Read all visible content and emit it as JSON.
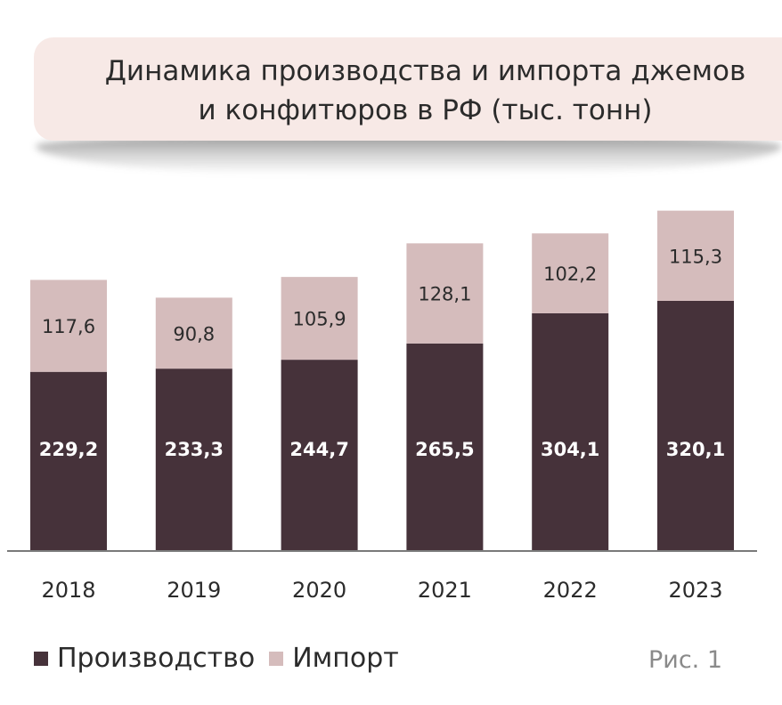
{
  "title_lines": [
    "Динамика производства и импорта джемов",
    "и конфитюров в РФ (тыс. тонн)"
  ],
  "figure_label": "Рис. 1",
  "colors": {
    "production": "#46323a",
    "import": "#d5bcbc",
    "title_bg": "#f7e9e6",
    "axis": "#7a7a7a"
  },
  "chart_data": {
    "type": "bar",
    "stacked": true,
    "title": "Динамика производства и импорта джемов и конфитюров в РФ (тыс. тонн)",
    "categories": [
      "2018",
      "2019",
      "2020",
      "2021",
      "2022",
      "2023"
    ],
    "series": [
      {
        "name": "Производство",
        "values": [
          229.2,
          233.3,
          244.7,
          265.5,
          304.1,
          320.1
        ],
        "labels": [
          "229,2",
          "233,3",
          "244,7",
          "265,5",
          "304,1",
          "320,1"
        ]
      },
      {
        "name": "Импорт",
        "values": [
          117.6,
          90.8,
          105.9,
          128.1,
          102.2,
          115.3
        ],
        "labels": [
          "117,6",
          "90,8",
          "105,9",
          "128,1",
          "102,2",
          "115,3"
        ]
      }
    ],
    "ylim": [
      0,
      435
    ],
    "grid": false,
    "legend": "bottom-left"
  }
}
